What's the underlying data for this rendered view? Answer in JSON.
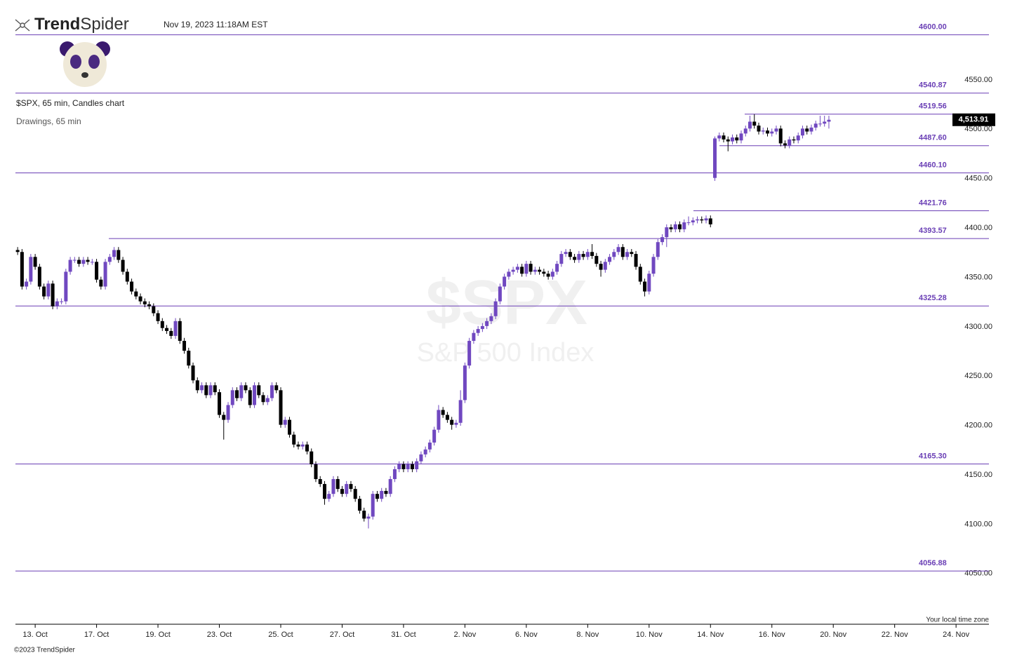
{
  "header": {
    "logo_bold": "Trend",
    "logo_light": "Spider",
    "timestamp": "Nov 19, 2023 11:18AM EST",
    "symbol_info": "$SPX, 65 min, Candles chart",
    "drawings_info": "Drawings, 65 min",
    "watermark_symbol": "$SPX",
    "watermark_name": "S&P 500 Index",
    "timezone_note": "Your local time zone",
    "copyright": "©2023 TrendSpider"
  },
  "chart_data": {
    "type": "candlestick",
    "up_color": "#7048c0",
    "down_color": "#000000",
    "level_color": "#6a3fb5",
    "xlim": [
      0,
      222
    ],
    "ylim": [
      4003,
      4621
    ],
    "xticks": [
      {
        "value": 4.5,
        "label": "13. Oct"
      },
      {
        "value": 18.5,
        "label": "17. Oct"
      },
      {
        "value": 32.5,
        "label": "19. Oct"
      },
      {
        "value": 46.5,
        "label": "23. Oct"
      },
      {
        "value": 60.5,
        "label": "25. Oct"
      },
      {
        "value": 74.5,
        "label": "27. Oct"
      },
      {
        "value": 88.5,
        "label": "31. Oct"
      },
      {
        "value": 102.5,
        "label": "2. Nov"
      },
      {
        "value": 116.5,
        "label": "6. Nov"
      },
      {
        "value": 130.5,
        "label": "8. Nov"
      },
      {
        "value": 144.5,
        "label": "10. Nov"
      },
      {
        "value": 158.5,
        "label": "14. Nov"
      },
      {
        "value": 172.5,
        "label": "16. Nov"
      },
      {
        "value": 186.5,
        "label": "20. Nov"
      },
      {
        "value": 200.5,
        "label": "22. Nov"
      },
      {
        "value": 214.5,
        "label": "24. Nov"
      }
    ],
    "yticks": [
      {
        "value": 4050,
        "label": "4050.00"
      },
      {
        "value": 4100,
        "label": "4100.00"
      },
      {
        "value": 4150,
        "label": "4150.00"
      },
      {
        "value": 4200,
        "label": "4200.00"
      },
      {
        "value": 4250,
        "label": "4250.00"
      },
      {
        "value": 4300,
        "label": "4300.00"
      },
      {
        "value": 4350,
        "label": "4350.00"
      },
      {
        "value": 4400,
        "label": "4400.00"
      },
      {
        "value": 4450,
        "label": "4450.00"
      },
      {
        "value": 4500,
        "label": "4500.00"
      },
      {
        "value": 4550,
        "label": "4550.00"
      }
    ],
    "levels": [
      {
        "value": 4600,
        "label": "4600.00"
      },
      4540.87,
      4519.56,
      {
        "value": 4487.6,
        "label": "4487.60"
      },
      {
        "value": 4460.1,
        "label": "4460.10"
      },
      4421.76,
      4393.57,
      4325.28,
      {
        "value": 4165.3,
        "label": "4165.30"
      },
      4056.88
    ],
    "last_price": {
      "value": 4513.91,
      "label": "4,513.91"
    },
    "candles": [
      [
        4382,
        4385,
        4377,
        4380
      ],
      [
        4380,
        4383,
        4342,
        4345
      ],
      [
        4345,
        4353,
        4342,
        4350
      ],
      [
        4350,
        4378,
        4347,
        4375
      ],
      [
        4375,
        4378,
        4362,
        4365
      ],
      [
        4365,
        4368,
        4342,
        4345
      ],
      [
        4345,
        4348,
        4332,
        4335
      ],
      [
        4335,
        4351,
        4332,
        4348
      ],
      [
        4348,
        4351,
        4322,
        4325
      ],
      [
        4325,
        4333,
        4322,
        4330
      ],
      [
        4330,
        4333,
        4327,
        4330
      ],
      [
        4330,
        4363,
        4327,
        4360
      ],
      [
        4360,
        4375,
        4357,
        4372
      ],
      [
        4372,
        4375,
        4369,
        4372
      ],
      [
        4372,
        4375,
        4365,
        4368
      ],
      [
        4368,
        4375,
        4365,
        4372
      ],
      [
        4372,
        4375,
        4367,
        4370
      ],
      [
        4370,
        4373,
        4367,
        4370
      ],
      [
        4370,
        4373,
        4349,
        4352
      ],
      [
        4352,
        4355,
        4342,
        4345
      ],
      [
        4345,
        4373,
        4342,
        4370
      ],
      [
        4370,
        4378,
        4367,
        4375
      ],
      [
        4375,
        4385,
        4372,
        4382
      ],
      [
        4382,
        4385,
        4369,
        4372
      ],
      [
        4372,
        4375,
        4357,
        4360
      ],
      [
        4360,
        4363,
        4347,
        4350
      ],
      [
        4350,
        4353,
        4337,
        4340
      ],
      [
        4340,
        4343,
        4332,
        4335
      ],
      [
        4335,
        4338,
        4327,
        4330
      ],
      [
        4330,
        4333,
        4324,
        4327
      ],
      [
        4327,
        4330,
        4322,
        4325
      ],
      [
        4325,
        4328,
        4315,
        4318
      ],
      [
        4318,
        4321,
        4307,
        4310
      ],
      [
        4310,
        4313,
        4300,
        4303
      ],
      [
        4303,
        4306,
        4297,
        4300
      ],
      [
        4300,
        4303,
        4292,
        4295
      ],
      [
        4295,
        4313,
        4292,
        4310
      ],
      [
        4310,
        4313,
        4287,
        4290
      ],
      [
        4290,
        4293,
        4277,
        4280
      ],
      [
        4280,
        4283,
        4262,
        4265
      ],
      [
        4265,
        4268,
        4247,
        4250
      ],
      [
        4250,
        4253,
        4237,
        4240
      ],
      [
        4240,
        4248,
        4237,
        4245
      ],
      [
        4245,
        4248,
        4232,
        4235
      ],
      [
        4235,
        4248,
        4232,
        4245
      ],
      [
        4245,
        4248,
        4235,
        4238
      ],
      [
        4238,
        4241,
        4212,
        4215
      ],
      [
        4215,
        4218,
        4190,
        4210
      ],
      [
        4210,
        4228,
        4207,
        4225
      ],
      [
        4225,
        4243,
        4222,
        4240
      ],
      [
        4240,
        4243,
        4229,
        4232
      ],
      [
        4232,
        4248,
        4229,
        4245
      ],
      [
        4245,
        4248,
        4237,
        4240
      ],
      [
        4240,
        4243,
        4222,
        4225
      ],
      [
        4225,
        4248,
        4222,
        4245
      ],
      [
        4245,
        4248,
        4232,
        4235
      ],
      [
        4235,
        4238,
        4225,
        4228
      ],
      [
        4228,
        4235,
        4225,
        4232
      ],
      [
        4232,
        4248,
        4229,
        4245
      ],
      [
        4245,
        4248,
        4237,
        4240
      ],
      [
        4240,
        4243,
        4202,
        4205
      ],
      [
        4205,
        4213,
        4202,
        4210
      ],
      [
        4210,
        4213,
        4192,
        4195
      ],
      [
        4195,
        4198,
        4182,
        4185
      ],
      [
        4185,
        4188,
        4180,
        4183
      ],
      [
        4183,
        4188,
        4180,
        4185
      ],
      [
        4185,
        4188,
        4175,
        4178
      ],
      [
        4178,
        4181,
        4162,
        4165
      ],
      [
        4165,
        4168,
        4147,
        4150
      ],
      [
        4150,
        4153,
        4142,
        4145
      ],
      [
        4145,
        4148,
        4124,
        4130
      ],
      [
        4130,
        4138,
        4127,
        4135
      ],
      [
        4135,
        4153,
        4132,
        4150
      ],
      [
        4150,
        4153,
        4137,
        4140
      ],
      [
        4140,
        4143,
        4132,
        4135
      ],
      [
        4135,
        4148,
        4132,
        4145
      ],
      [
        4145,
        4148,
        4137,
        4140
      ],
      [
        4140,
        4143,
        4127,
        4130
      ],
      [
        4130,
        4133,
        4115,
        4118
      ],
      [
        4118,
        4121,
        4107,
        4110
      ],
      [
        4110,
        4115,
        4100,
        4112
      ],
      [
        4112,
        4138,
        4109,
        4135
      ],
      [
        4135,
        4138,
        4127,
        4130
      ],
      [
        4130,
        4141,
        4127,
        4138
      ],
      [
        4138,
        4141,
        4132,
        4135
      ],
      [
        4135,
        4153,
        4132,
        4150
      ],
      [
        4150,
        4163,
        4147,
        4160
      ],
      [
        4160,
        4168,
        4157,
        4165
      ],
      [
        4165,
        4168,
        4157,
        4160
      ],
      [
        4160,
        4168,
        4157,
        4165
      ],
      [
        4165,
        4168,
        4157,
        4160
      ],
      [
        4160,
        4171,
        4157,
        4168
      ],
      [
        4168,
        4178,
        4165,
        4175
      ],
      [
        4175,
        4183,
        4172,
        4180
      ],
      [
        4180,
        4190,
        4177,
        4187
      ],
      [
        4187,
        4203,
        4184,
        4200
      ],
      [
        4200,
        4225,
        4197,
        4220
      ],
      [
        4220,
        4223,
        4212,
        4215
      ],
      [
        4215,
        4218,
        4207,
        4210
      ],
      [
        4210,
        4213,
        4200,
        4205
      ],
      [
        4205,
        4210,
        4202,
        4207
      ],
      [
        4207,
        4240,
        4204,
        4230
      ],
      [
        4230,
        4268,
        4227,
        4265
      ],
      [
        4265,
        4293,
        4262,
        4290
      ],
      [
        4290,
        4301,
        4287,
        4298
      ],
      [
        4298,
        4305,
        4295,
        4302
      ],
      [
        4302,
        4308,
        4299,
        4305
      ],
      [
        4305,
        4313,
        4302,
        4310
      ],
      [
        4310,
        4318,
        4307,
        4315
      ],
      [
        4315,
        4333,
        4312,
        4330
      ],
      [
        4330,
        4348,
        4327,
        4345
      ],
      [
        4345,
        4358,
        4342,
        4355
      ],
      [
        4355,
        4363,
        4352,
        4360
      ],
      [
        4360,
        4365,
        4357,
        4362
      ],
      [
        4362,
        4368,
        4359,
        4365
      ],
      [
        4365,
        4368,
        4355,
        4358
      ],
      [
        4358,
        4371,
        4355,
        4368
      ],
      [
        4368,
        4371,
        4357,
        4360
      ],
      [
        4360,
        4365,
        4357,
        4362
      ],
      [
        4362,
        4365,
        4357,
        4360
      ],
      [
        4360,
        4363,
        4355,
        4358
      ],
      [
        4358,
        4361,
        4352,
        4355
      ],
      [
        4355,
        4363,
        4352,
        4360
      ],
      [
        4360,
        4371,
        4357,
        4368
      ],
      [
        4368,
        4381,
        4365,
        4378
      ],
      [
        4378,
        4383,
        4375,
        4380
      ],
      [
        4380,
        4383,
        4372,
        4375
      ],
      [
        4375,
        4378,
        4369,
        4372
      ],
      [
        4372,
        4381,
        4369,
        4378
      ],
      [
        4378,
        4381,
        4372,
        4375
      ],
      [
        4375,
        4383,
        4372,
        4380
      ],
      [
        4380,
        4388,
        4373,
        4376
      ],
      [
        4376,
        4379,
        4365,
        4368
      ],
      [
        4368,
        4371,
        4355,
        4362
      ],
      [
        4362,
        4373,
        4359,
        4370
      ],
      [
        4370,
        4378,
        4367,
        4375
      ],
      [
        4375,
        4383,
        4372,
        4380
      ],
      [
        4380,
        4388,
        4377,
        4385
      ],
      [
        4385,
        4388,
        4372,
        4375
      ],
      [
        4375,
        4383,
        4372,
        4380
      ],
      [
        4380,
        4383,
        4375,
        4378
      ],
      [
        4378,
        4381,
        4362,
        4365
      ],
      [
        4365,
        4368,
        4347,
        4350
      ],
      [
        4350,
        4353,
        4335,
        4340
      ],
      [
        4340,
        4361,
        4337,
        4358
      ],
      [
        4358,
        4378,
        4355,
        4375
      ],
      [
        4375,
        4393,
        4372,
        4390
      ],
      [
        4390,
        4398,
        4387,
        4395
      ],
      [
        4395,
        4408,
        4385,
        4405
      ],
      [
        4405,
        4408,
        4400,
        4403
      ],
      [
        4403,
        4411,
        4400,
        4408
      ],
      [
        4408,
        4411,
        4400,
        4403
      ],
      [
        4403,
        4413,
        4400,
        4410
      ],
      [
        4410,
        4416,
        4407,
        4410
      ],
      [
        4410,
        4415,
        4407,
        4412
      ],
      [
        4412,
        4416,
        4409,
        4413
      ],
      [
        4413,
        4416,
        4409,
        4412
      ],
      [
        4412,
        4417,
        4409,
        4414
      ],
      [
        4414,
        4417,
        4405,
        4408
      ],
      [
        4455,
        4497,
        4452,
        4495
      ],
      [
        4495,
        4501,
        4492,
        4498
      ],
      [
        4498,
        4501,
        4491,
        4494
      ],
      [
        4494,
        4497,
        4482,
        4492
      ],
      [
        4492,
        4499,
        4489,
        4496
      ],
      [
        4496,
        4499,
        4490,
        4493
      ],
      [
        4493,
        4503,
        4490,
        4500
      ],
      [
        4500,
        4508,
        4497,
        4505
      ],
      [
        4505,
        4518,
        4502,
        4512
      ],
      [
        4512,
        4519.56,
        4505,
        4508
      ],
      [
        4508,
        4511,
        4499,
        4502
      ],
      [
        4502,
        4506,
        4499,
        4503
      ],
      [
        4503,
        4506,
        4497,
        4500
      ],
      [
        4500,
        4505,
        4497,
        4502
      ],
      [
        4502,
        4508,
        4499,
        4505
      ],
      [
        4505,
        4508,
        4487,
        4490
      ],
      [
        4490,
        4493,
        4485,
        4488
      ],
      [
        4488,
        4497,
        4485,
        4494
      ],
      [
        4494,
        4497,
        4490,
        4493
      ],
      [
        4493,
        4501,
        4490,
        4498
      ],
      [
        4498,
        4508,
        4495,
        4505
      ],
      [
        4505,
        4508,
        4499,
        4502
      ],
      [
        4502,
        4509,
        4499,
        4506
      ],
      [
        4506,
        4513,
        4503,
        4510
      ],
      [
        4510,
        4518,
        4507,
        4510
      ],
      [
        4510,
        4518,
        4507,
        4512
      ],
      [
        4512,
        4518,
        4505,
        4513.91
      ]
    ]
  }
}
